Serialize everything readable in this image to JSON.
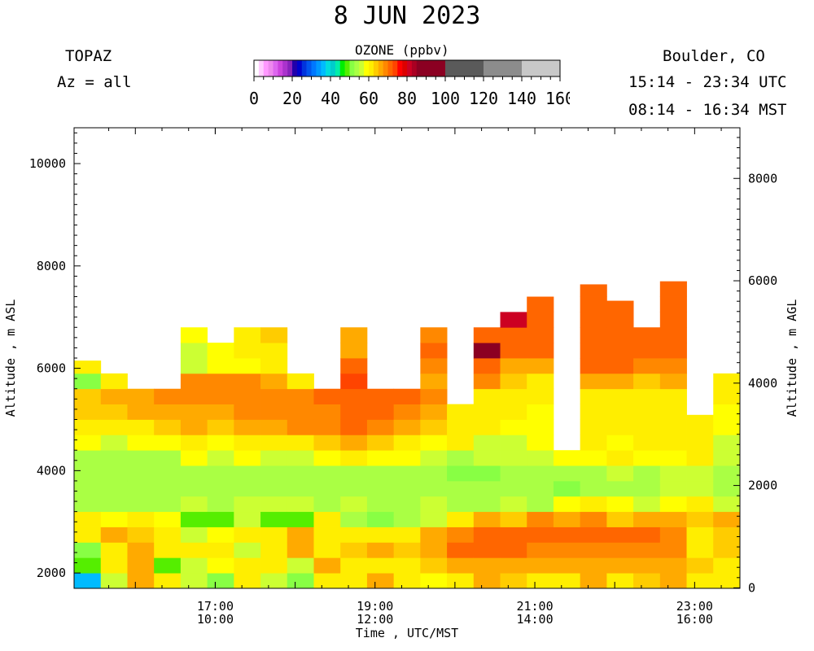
{
  "header": {
    "title": "8 JUN 2023",
    "instrument": "TOPAZ",
    "azimuth": "Az = all",
    "location": "Boulder, CO",
    "utc_range": "15:14 - 23:34 UTC",
    "mst_range": "08:14 - 16:34 MST"
  },
  "colorbar": {
    "title": "OZONE (ppbv)",
    "tick_labels": [
      "0",
      "20",
      "40",
      "60",
      "80",
      "100",
      "120",
      "140",
      "160"
    ],
    "range": [
      0,
      160
    ],
    "segments": [
      {
        "from": 0,
        "to": 2.5,
        "color": "#ffffff"
      },
      {
        "from": 2.5,
        "to": 5,
        "color": "#ffccff"
      },
      {
        "from": 5,
        "to": 7.5,
        "color": "#ff99ff"
      },
      {
        "from": 7.5,
        "to": 10,
        "color": "#ee88ee"
      },
      {
        "from": 10,
        "to": 12.5,
        "color": "#dd66ee"
      },
      {
        "from": 12.5,
        "to": 15,
        "color": "#cc44dd"
      },
      {
        "from": 15,
        "to": 17.5,
        "color": "#aa33cc"
      },
      {
        "from": 17.5,
        "to": 20,
        "color": "#8822bb"
      },
      {
        "from": 20,
        "to": 22.5,
        "color": "#2200aa"
      },
      {
        "from": 22.5,
        "to": 25,
        "color": "#0000cc"
      },
      {
        "from": 25,
        "to": 27.5,
        "color": "#0033dd"
      },
      {
        "from": 27.5,
        "to": 30,
        "color": "#0055ee"
      },
      {
        "from": 30,
        "to": 32.5,
        "color": "#0077ff"
      },
      {
        "from": 32.5,
        "to": 35,
        "color": "#0099ff"
      },
      {
        "from": 35,
        "to": 37.5,
        "color": "#00bbff"
      },
      {
        "from": 37.5,
        "to": 40,
        "color": "#00dddd"
      },
      {
        "from": 40,
        "to": 42.5,
        "color": "#00cccc"
      },
      {
        "from": 42.5,
        "to": 45,
        "color": "#00eeaa"
      },
      {
        "from": 45,
        "to": 47.5,
        "color": "#00ee00"
      },
      {
        "from": 47.5,
        "to": 50,
        "color": "#55ee00"
      },
      {
        "from": 50,
        "to": 52.5,
        "color": "#88ff44"
      },
      {
        "from": 52.5,
        "to": 55,
        "color": "#aaff44"
      },
      {
        "from": 55,
        "to": 57.5,
        "color": "#ccff33"
      },
      {
        "from": 57.5,
        "to": 60,
        "color": "#ffff00"
      },
      {
        "from": 60,
        "to": 62.5,
        "color": "#ffee00"
      },
      {
        "from": 62.5,
        "to": 65,
        "color": "#ffcc00"
      },
      {
        "from": 65,
        "to": 67.5,
        "color": "#ffaa00"
      },
      {
        "from": 67.5,
        "to": 70,
        "color": "#ff8800"
      },
      {
        "from": 70,
        "to": 72.5,
        "color": "#ff6600"
      },
      {
        "from": 72.5,
        "to": 75,
        "color": "#ff4400"
      },
      {
        "from": 75,
        "to": 77.5,
        "color": "#ff0000"
      },
      {
        "from": 77.5,
        "to": 80,
        "color": "#dd0000"
      },
      {
        "from": 80,
        "to": 82.5,
        "color": "#cc0022"
      },
      {
        "from": 82.5,
        "to": 85,
        "color": "#aa0022"
      },
      {
        "from": 85,
        "to": 100,
        "color": "#8b0022"
      },
      {
        "from": 100,
        "to": 120,
        "color": "#5a5a5a"
      },
      {
        "from": 120,
        "to": 140,
        "color": "#8c8c8c"
      },
      {
        "from": 140,
        "to": 160,
        "color": "#c8c8c8"
      }
    ]
  },
  "chart_data": {
    "type": "heatmap",
    "xlabel": "Time , UTC/MST",
    "ylabel_left": "Altitude , m ASL",
    "ylabel_right": "Altitude , m AGL",
    "xlim_utc_hours": [
      15.233,
      23.567
    ],
    "ylim_left_m_asl": [
      1700,
      10700
    ],
    "ylim_right_m_agl": [
      -10,
      8990
    ],
    "x_ticks": [
      {
        "value": 17,
        "utc": "17:00",
        "mst": "10:00"
      },
      {
        "value": 19,
        "utc": "19:00",
        "mst": "12:00"
      },
      {
        "value": 21,
        "utc": "21:00",
        "mst": "14:00"
      },
      {
        "value": 23,
        "utc": "23:00",
        "mst": "16:00"
      }
    ],
    "y_ticks_left": [
      2000,
      4000,
      6000,
      8000,
      10000
    ],
    "y_ticks_right": [
      0,
      2000,
      4000,
      6000,
      8000
    ],
    "profile_start_times_utc": [
      "15:14",
      "15:34",
      "15:54",
      "16:14",
      "16:34",
      "16:54",
      "17:14",
      "17:34",
      "17:54",
      "18:14",
      "18:34",
      "18:54",
      "19:14",
      "19:34",
      "19:54",
      "20:14",
      "20:34",
      "20:54",
      "21:14",
      "21:34",
      "21:54",
      "22:14",
      "22:34",
      "22:54",
      "23:14"
    ],
    "profile_duration_minutes": 20,
    "altitude_levels_m_asl": [
      1700,
      2000,
      2300,
      2600,
      2900,
      3200,
      3500,
      3800,
      4100,
      4400,
      4700,
      5000,
      5300,
      5600,
      5900,
      6200,
      6500,
      6800,
      7100,
      7400
    ],
    "level_thickness_m": 300,
    "profile_tops_m_asl": [
      6150,
      6150,
      5700,
      5750,
      6870,
      6620,
      6960,
      6960,
      6150,
      5600,
      6830,
      5770,
      5780,
      7290,
      5350,
      6850,
      7110,
      7500,
      4590,
      7640,
      7320,
      7290,
      7770,
      5090,
      6080
    ],
    "ozone_ppbv": [
      [
        36,
        55,
        65,
        62,
        55,
        52,
        60,
        55,
        52,
        62,
        60,
        66,
        60,
        58,
        62,
        66,
        64,
        62,
        62,
        66,
        62,
        64,
        66,
        62,
        60
      ],
      [
        48,
        60,
        66,
        48,
        56,
        58,
        60,
        62,
        56,
        66,
        62,
        60,
        60,
        64,
        66,
        66,
        66,
        66,
        66,
        66,
        66,
        66,
        66,
        64,
        62
      ],
      [
        52,
        62,
        66,
        62,
        60,
        62,
        56,
        60,
        66,
        62,
        64,
        66,
        64,
        66,
        70,
        70,
        70,
        68,
        68,
        68,
        68,
        68,
        68,
        62,
        64
      ],
      [
        60,
        66,
        64,
        60,
        56,
        58,
        60,
        62,
        66,
        62,
        62,
        60,
        60,
        66,
        68,
        70,
        70,
        70,
        70,
        70,
        70,
        70,
        68,
        62,
        64
      ],
      [
        62,
        58,
        62,
        58,
        48,
        48,
        56,
        48,
        48,
        60,
        54,
        50,
        54,
        56,
        62,
        66,
        64,
        68,
        66,
        68,
        64,
        66,
        66,
        64,
        66
      ],
      [
        54,
        54,
        54,
        54,
        56,
        54,
        55,
        56,
        56,
        54,
        55,
        54,
        53,
        55,
        54,
        54,
        55,
        54,
        58,
        60,
        58,
        56,
        58,
        60,
        55
      ],
      [
        53,
        53,
        53,
        53,
        53,
        53,
        54,
        54,
        54,
        54,
        54,
        53,
        53,
        54,
        53,
        53,
        53,
        53,
        52,
        54,
        54,
        54,
        55,
        55,
        53
      ],
      [
        53,
        53,
        53,
        53,
        53,
        53,
        53,
        53,
        54,
        53,
        54,
        54,
        54,
        53,
        52,
        50,
        54,
        54,
        53,
        54,
        56,
        54,
        56,
        56,
        54
      ],
      [
        54,
        53,
        53,
        54,
        58,
        56,
        58,
        55,
        56,
        58,
        60,
        58,
        58,
        57,
        54,
        56,
        55,
        56,
        58,
        58,
        60,
        58,
        58,
        60,
        56
      ],
      [
        58,
        57,
        58,
        58,
        60,
        58,
        60,
        60,
        62,
        64,
        66,
        64,
        60,
        58,
        60,
        55,
        56,
        58,
        0,
        60,
        58,
        60,
        60,
        60,
        56
      ],
      [
        62,
        62,
        62,
        64,
        65,
        64,
        66,
        66,
        68,
        68,
        70,
        68,
        66,
        64,
        60,
        60,
        58,
        58,
        0,
        60,
        62,
        60,
        62,
        60,
        58
      ],
      [
        63,
        64,
        65,
        66,
        67,
        67,
        68,
        68,
        68,
        68,
        70,
        70,
        68,
        66,
        62,
        60,
        60,
        58,
        0,
        62,
        62,
        60,
        62,
        60,
        58
      ],
      [
        64,
        65,
        66,
        68,
        68,
        68,
        68,
        68,
        68,
        70,
        70,
        70,
        70,
        68,
        0,
        62,
        62,
        60,
        0,
        62,
        62,
        62,
        62,
        0,
        60
      ],
      [
        52,
        60,
        0,
        0,
        68,
        68,
        68,
        66,
        62,
        0,
        74,
        0,
        0,
        66,
        0,
        68,
        64,
        60,
        0,
        66,
        66,
        64,
        66,
        0,
        62
      ],
      [
        60,
        0,
        0,
        0,
        56,
        58,
        58,
        60,
        0,
        0,
        70,
        0,
        0,
        68,
        0,
        70,
        66,
        66,
        0,
        70,
        70,
        68,
        68,
        0,
        0
      ],
      [
        0,
        0,
        0,
        0,
        56,
        58,
        60,
        62,
        0,
        0,
        66,
        0,
        0,
        72,
        0,
        85,
        72,
        70,
        0,
        70,
        70,
        70,
        70,
        0,
        0
      ],
      [
        0,
        0,
        0,
        0,
        58,
        0,
        62,
        64,
        0,
        0,
        66,
        0,
        0,
        68,
        0,
        72,
        70,
        72,
        0,
        70,
        70,
        72,
        70,
        0,
        0
      ],
      [
        0,
        0,
        0,
        0,
        0,
        0,
        0,
        0,
        0,
        0,
        0,
        0,
        0,
        0,
        0,
        0,
        80,
        70,
        0,
        72,
        70,
        0,
        70,
        0,
        0
      ],
      [
        0,
        0,
        0,
        0,
        0,
        0,
        0,
        0,
        0,
        0,
        0,
        0,
        0,
        0,
        0,
        0,
        0,
        70,
        0,
        70,
        70,
        0,
        72,
        0,
        0
      ],
      [
        0,
        0,
        0,
        0,
        0,
        0,
        0,
        0,
        0,
        0,
        0,
        0,
        0,
        0,
        0,
        0,
        0,
        0,
        0,
        72,
        0,
        0,
        72,
        0,
        0
      ]
    ]
  }
}
